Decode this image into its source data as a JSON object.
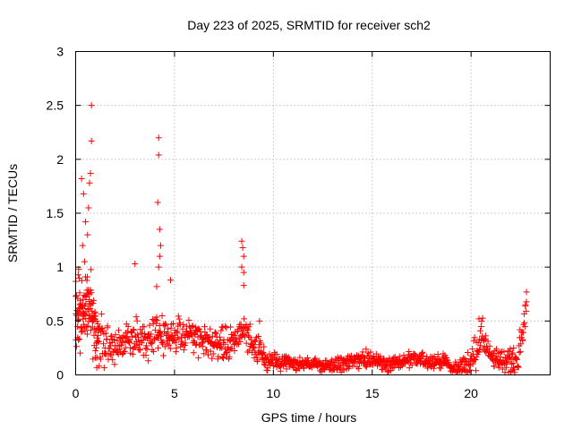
{
  "chart_data": {
    "type": "scatter",
    "title": "Day 223 of 2025, SRMTID for receiver sch2",
    "xlabel": "GPS time / hours",
    "ylabel": "SRMTID / TECUs",
    "xlim": [
      0,
      24
    ],
    "ylim": [
      0,
      3
    ],
    "xticks": [
      0,
      5,
      10,
      15,
      20
    ],
    "xtick_labels": [
      "0",
      "5",
      "10",
      "15",
      "20"
    ],
    "yticks": [
      0,
      0.5,
      1,
      1.5,
      2,
      2.5,
      3
    ],
    "ytick_labels": [
      "0",
      "0.5",
      "1",
      "1.5",
      "2",
      "2.5",
      "3"
    ],
    "grid": true,
    "marker": "+",
    "color": "#ff0000",
    "series": [
      {
        "name": "SRMTID",
        "envelope_note": "approximate median level and scatter spread over GPS hours",
        "level": [
          [
            0,
            0.5
          ],
          [
            0.5,
            0.6
          ],
          [
            0.8,
            0.6
          ],
          [
            1,
            0.35
          ],
          [
            2,
            0.25
          ],
          [
            3,
            0.35
          ],
          [
            4,
            0.35
          ],
          [
            5,
            0.4
          ],
          [
            6,
            0.35
          ],
          [
            7,
            0.3
          ],
          [
            8,
            0.3
          ],
          [
            8.5,
            0.4
          ],
          [
            9,
            0.3
          ],
          [
            9.5,
            0.15
          ],
          [
            10,
            0.12
          ],
          [
            12,
            0.1
          ],
          [
            13,
            0.08
          ],
          [
            14,
            0.13
          ],
          [
            15,
            0.14
          ],
          [
            16,
            0.1
          ],
          [
            17,
            0.14
          ],
          [
            18,
            0.13
          ],
          [
            18.8,
            0.12
          ],
          [
            19,
            0.05
          ],
          [
            19.5,
            0.08
          ],
          [
            20,
            0.12
          ],
          [
            20.4,
            0.3
          ],
          [
            20.6,
            0.35
          ],
          [
            21,
            0.15
          ],
          [
            22,
            0.13
          ],
          [
            22.4,
            0.15
          ],
          [
            22.7,
            0.5
          ],
          [
            22.8,
            0.7
          ]
        ],
        "spread": [
          [
            0,
            0.25
          ],
          [
            1,
            0.2
          ],
          [
            2,
            0.1
          ],
          [
            3,
            0.12
          ],
          [
            5,
            0.12
          ],
          [
            8,
            0.1
          ],
          [
            9,
            0.1
          ],
          [
            10,
            0.05
          ],
          [
            12,
            0.04
          ],
          [
            15,
            0.06
          ],
          [
            19,
            0.04
          ],
          [
            20.5,
            0.12
          ],
          [
            21,
            0.06
          ],
          [
            22.5,
            0.1
          ],
          [
            22.8,
            0.08
          ]
        ],
        "peaks": [
          {
            "x": 0.8,
            "y": 2.5
          },
          {
            "x": 0.8,
            "y": 2.17
          },
          {
            "x": 0.75,
            "y": 1.87
          },
          {
            "x": 0.7,
            "y": 1.78
          },
          {
            "x": 0.3,
            "y": 1.82
          },
          {
            "x": 0.4,
            "y": 1.68
          },
          {
            "x": 0.65,
            "y": 1.55
          },
          {
            "x": 0.5,
            "y": 1.42
          },
          {
            "x": 0.6,
            "y": 1.3
          },
          {
            "x": 0.35,
            "y": 1.2
          },
          {
            "x": 0.45,
            "y": 1.05
          },
          {
            "x": 0.15,
            "y": 0.98
          },
          {
            "x": 4.2,
            "y": 2.2
          },
          {
            "x": 4.2,
            "y": 2.04
          },
          {
            "x": 4.15,
            "y": 1.6
          },
          {
            "x": 4.25,
            "y": 1.35
          },
          {
            "x": 4.3,
            "y": 1.2
          },
          {
            "x": 4.25,
            "y": 1.1
          },
          {
            "x": 4.2,
            "y": 1.0
          },
          {
            "x": 4.1,
            "y": 0.82
          },
          {
            "x": 4.8,
            "y": 0.88
          },
          {
            "x": 3.0,
            "y": 1.03
          },
          {
            "x": 8.4,
            "y": 1.24
          },
          {
            "x": 8.45,
            "y": 1.18
          },
          {
            "x": 8.5,
            "y": 1.1
          },
          {
            "x": 8.4,
            "y": 1.0
          },
          {
            "x": 8.5,
            "y": 0.95
          },
          {
            "x": 8.5,
            "y": 0.83
          },
          {
            "x": 9.3,
            "y": 0.5
          },
          {
            "x": 20.4,
            "y": 0.52
          },
          {
            "x": 22.8,
            "y": 0.77
          }
        ]
      }
    ]
  }
}
